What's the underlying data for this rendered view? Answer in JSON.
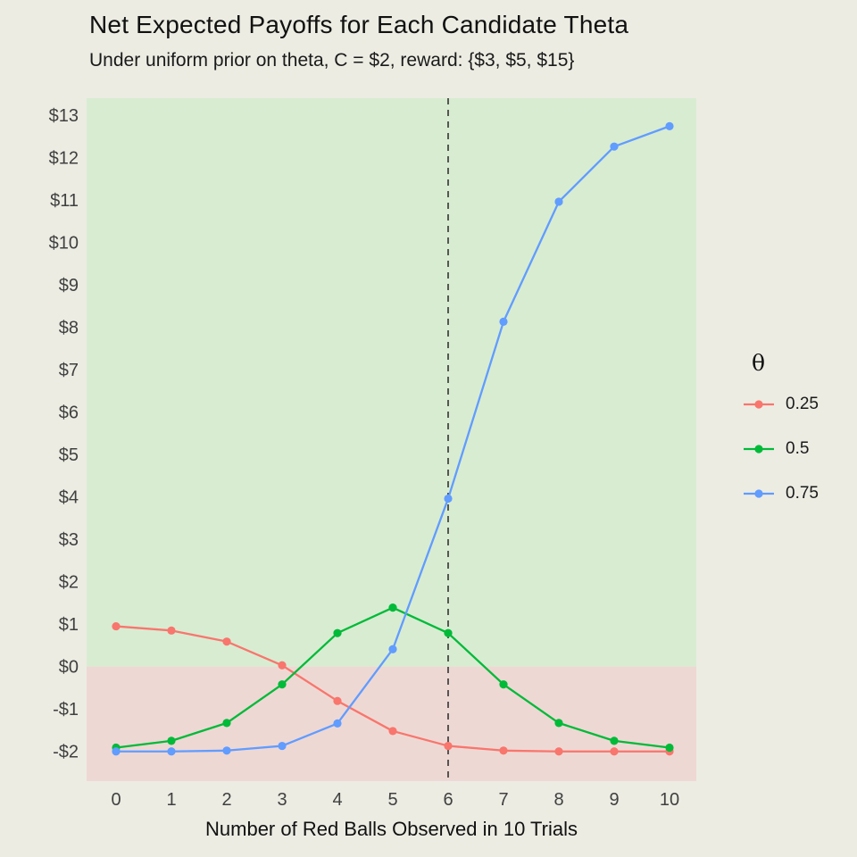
{
  "chart_data": {
    "type": "line",
    "title": "Net Expected Payoffs for Each Candidate Theta",
    "subtitle": "Under uniform prior on theta, C = $2, reward: {$3, $5, $15}",
    "xlabel": "Number of Red Balls Observed in 10 Trials",
    "ylabel": "",
    "legend_title": "θ",
    "legend_position": "right",
    "grid": false,
    "background_color": "#ecece3",
    "positive_region_color": "#d8ecd2",
    "negative_region_color": "#eed8d4",
    "reference_line_x": 6,
    "zero_line_value": 0,
    "x": [
      0,
      1,
      2,
      3,
      4,
      5,
      6,
      7,
      8,
      9,
      10
    ],
    "x_tick_labels": [
      "0",
      "1",
      "2",
      "3",
      "4",
      "5",
      "6",
      "7",
      "8",
      "9",
      "10"
    ],
    "ylim": [
      -2.7,
      13.4
    ],
    "y_tick_values": [
      13,
      12,
      11,
      10,
      9,
      8,
      7,
      6,
      5,
      4,
      3,
      2,
      1,
      0,
      -1,
      -2
    ],
    "y_tick_labels": [
      "$13",
      "$12",
      "$11",
      "$10",
      "$9",
      "$8",
      "$7",
      "$6",
      "$5",
      "$4",
      "$3",
      "$2",
      "$1",
      "$0",
      "-$1",
      "-$2"
    ],
    "series": [
      {
        "name": "0.25",
        "color": "#f8766d",
        "values": [
          0.95,
          0.85,
          0.59,
          0.03,
          -0.81,
          -1.52,
          -1.87,
          -1.98,
          -2.0,
          -2.0,
          -2.0
        ]
      },
      {
        "name": "0.5",
        "color": "#00ba38",
        "values": [
          -1.91,
          -1.75,
          -1.33,
          -0.42,
          0.79,
          1.39,
          0.79,
          -0.42,
          -1.33,
          -1.75,
          -1.91
        ]
      },
      {
        "name": "0.75",
        "color": "#619cff",
        "values": [
          -2.0,
          -2.0,
          -1.98,
          -1.87,
          -1.34,
          0.41,
          3.96,
          8.13,
          10.96,
          12.26,
          12.74
        ]
      }
    ]
  }
}
